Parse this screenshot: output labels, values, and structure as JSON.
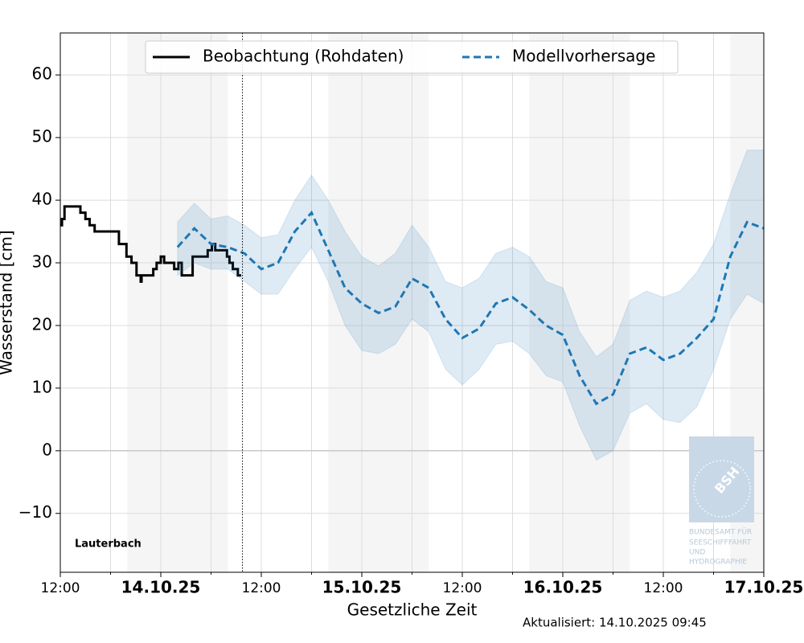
{
  "chart_data": {
    "type": "line",
    "xlabel": "Gesetzliche Zeit",
    "ylabel": "Wasserstand [cm]",
    "station": "Lauterbach",
    "updated": "Aktualisiert: 14.10.2025 09:45",
    "now": 21.75,
    "xlim": [
      0,
      84
    ],
    "xticks": [
      {
        "value": 0,
        "label": "12:00"
      },
      {
        "value": 12,
        "label": "14.10.25"
      },
      {
        "value": 24,
        "label": "12:00"
      },
      {
        "value": 36,
        "label": "15.10.25"
      },
      {
        "value": 48,
        "label": "12:00"
      },
      {
        "value": 60,
        "label": "16.10.25"
      },
      {
        "value": 72,
        "label": "12:00"
      },
      {
        "value": 84,
        "label": "17.10.25"
      }
    ],
    "xminor_ticks": [
      6,
      18,
      30,
      42,
      54,
      66,
      78
    ],
    "ylim": [
      -19.4,
      66.7
    ],
    "yticks": [
      {
        "value": -10,
        "label": "−10"
      },
      0,
      10,
      20,
      30,
      40,
      50,
      60
    ],
    "hline": 0,
    "grid": true,
    "legend": "upper center",
    "shaded_regions": [
      [
        8,
        20
      ],
      [
        32,
        44
      ],
      [
        56,
        68
      ],
      [
        80,
        84
      ]
    ],
    "series": [
      {
        "name": "Beobachtung (Rohdaten)",
        "color": "#000000",
        "style": "steps",
        "x": [
          0,
          0.2,
          0.5,
          2.4,
          3,
          3.5,
          4.1,
          7,
          7.9,
          8.5,
          9.1,
          9.6,
          9.7,
          11.1,
          11.5,
          12,
          12.4,
          13.6,
          14.1,
          14.5,
          15.8,
          17.6,
          18.1,
          18.5,
          19.9,
          20.2,
          20.6,
          21.2,
          21.6
        ],
        "values": [
          36,
          37,
          39,
          38,
          37,
          36,
          35,
          33,
          31,
          30,
          28,
          27,
          28,
          29,
          30,
          31,
          30,
          29,
          30,
          28,
          31,
          32,
          33,
          32,
          31,
          30,
          29,
          28,
          28
        ]
      },
      {
        "name": "Modellvorhersage",
        "color": "#1f77b4",
        "style": "dashed",
        "x": [
          14,
          16,
          18,
          20,
          22,
          24,
          26,
          28,
          30,
          32,
          34,
          36,
          38,
          40,
          42,
          44,
          46,
          48,
          50,
          52,
          54,
          56,
          58,
          60,
          62,
          64,
          66,
          68,
          70,
          72,
          74,
          76,
          78,
          80,
          82,
          84
        ],
        "values": [
          32.5,
          35.5,
          33,
          32.5,
          31.5,
          29,
          30,
          35,
          38,
          32,
          26,
          23.5,
          22,
          23,
          27.5,
          26,
          21,
          18,
          19.5,
          23.5,
          24.5,
          22.5,
          20,
          18.5,
          12,
          7.5,
          9,
          15.5,
          16.5,
          14.5,
          15.5,
          18,
          21,
          31,
          36.5,
          35.5
        ],
        "upper": [
          36.5,
          39.5,
          37,
          37.5,
          36,
          34,
          34.5,
          40,
          44,
          40,
          35,
          31,
          29.5,
          31.5,
          36,
          32.5,
          27,
          26,
          27.5,
          31.5,
          32.5,
          31,
          27,
          26,
          19,
          15,
          17,
          24,
          25.5,
          24.5,
          25.5,
          28.5,
          33,
          41,
          48,
          48
        ],
        "lower": [
          28,
          30,
          29,
          29,
          27,
          25,
          25,
          29,
          32.5,
          27,
          20,
          16,
          15.5,
          17,
          21,
          19,
          13,
          10.5,
          13,
          17,
          17.5,
          15.5,
          12,
          11,
          4,
          -1.5,
          0,
          6,
          7.5,
          5,
          4.5,
          7,
          13,
          21,
          25,
          23.5
        ]
      }
    ],
    "logo": {
      "abbr": "BSH",
      "lines": [
        "BUNDESAMT FÜR",
        "SEESCHIFFFAHRT",
        "UND",
        "HYDROGRAPHIE"
      ]
    }
  }
}
